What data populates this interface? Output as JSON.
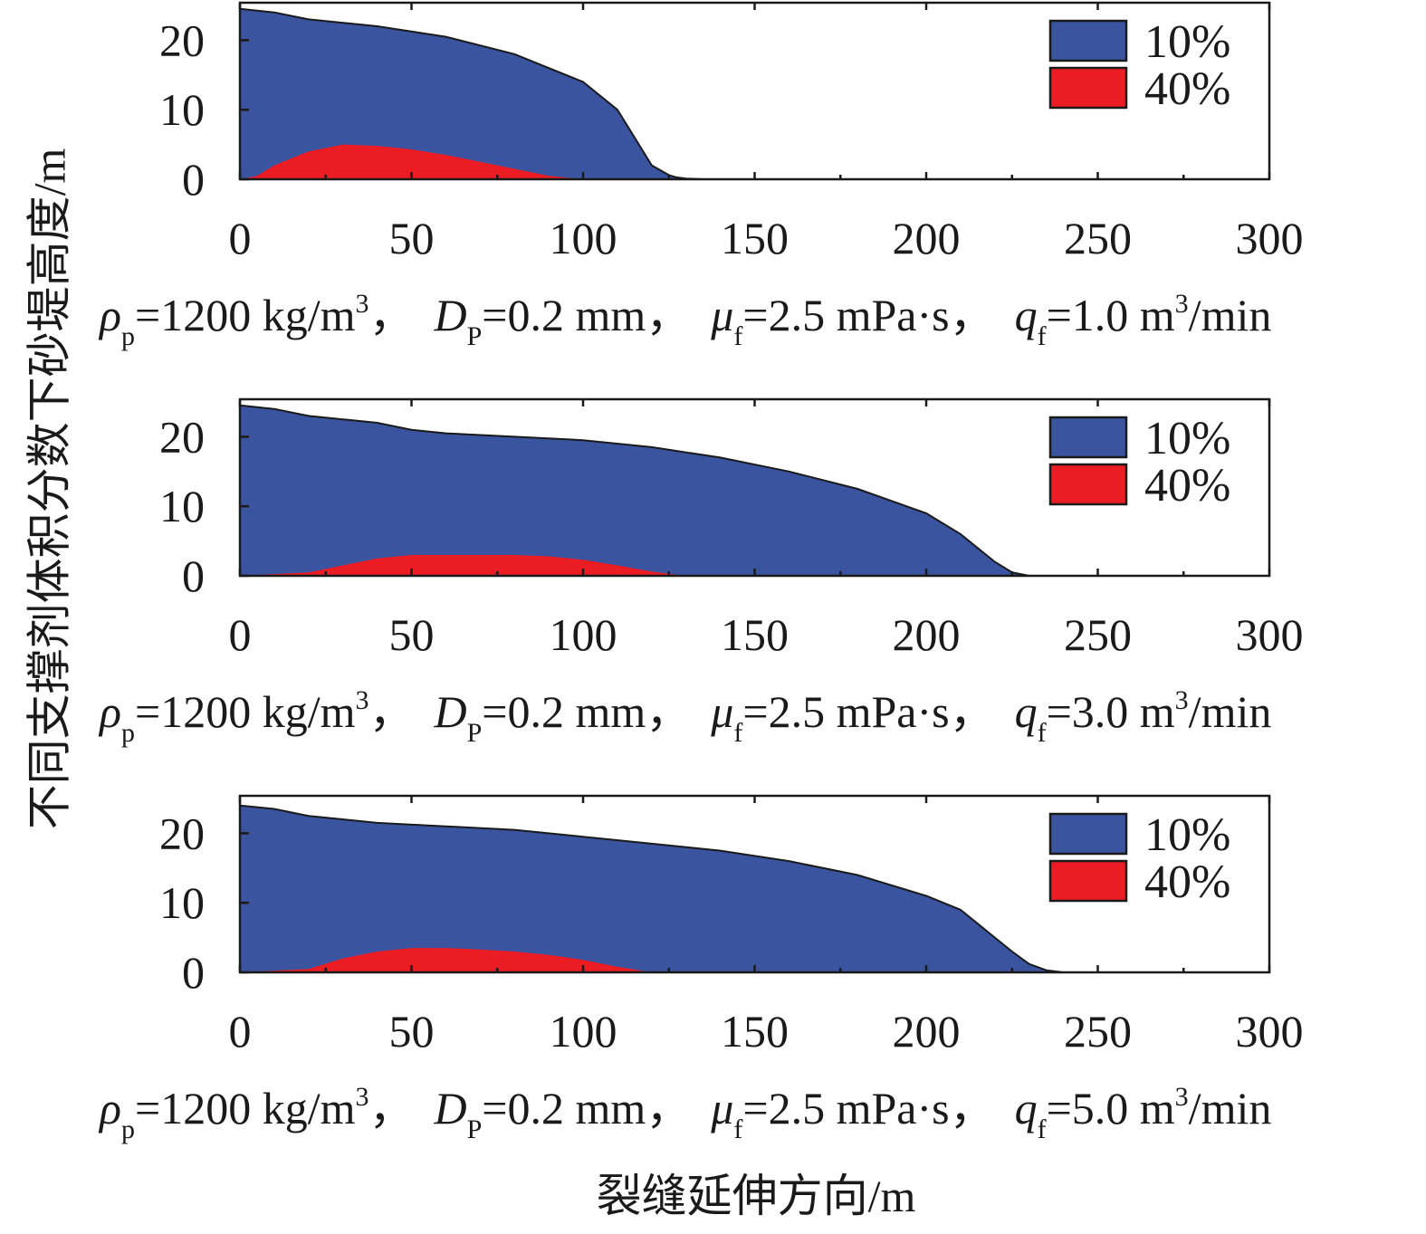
{
  "figure": {
    "ylabel": "不同支撑剂体积分数下砂堤高度/m",
    "xlabel": "裂缝延伸方向/m"
  },
  "colors": {
    "series_10": "#3a54a0",
    "series_40": "#ec1c24"
  },
  "chart_data": [
    {
      "type": "area",
      "xlim": [
        0,
        300
      ],
      "ylim": [
        0,
        25
      ],
      "xticks": [
        0,
        50,
        100,
        150,
        200,
        250,
        300
      ],
      "yticks": [
        0,
        10,
        20
      ],
      "legend": {
        "placement": "top-right",
        "entries": [
          "10%",
          "40%"
        ]
      },
      "caption": {
        "rho_sym": "ρ",
        "rho_sub": "p",
        "rho_val": "=1200 kg/m",
        "rho_sup": "3",
        "sep1": "，",
        "d_sym": "D",
        "d_sub": "P",
        "d_val": "=0.2 mm",
        "sep2": "，",
        "mu_sym": "μ",
        "mu_sub": "f",
        "mu_val": "=2.5 mPa·s",
        "sep3": "，",
        "q_sym": "q",
        "q_sub": "f",
        "q_val": "=1.0 m",
        "q_sup": "3",
        "q_unit": "/min"
      },
      "series": [
        {
          "name": "10%",
          "x": [
            0,
            10,
            20,
            40,
            60,
            80,
            100,
            110,
            115,
            120,
            125,
            127,
            130,
            135
          ],
          "y": [
            24.5,
            24,
            23,
            22,
            20.5,
            18,
            14,
            10,
            6,
            2,
            0.6,
            0.3,
            0.1,
            0
          ]
        },
        {
          "name": "40%",
          "x": [
            0,
            5,
            10,
            20,
            30,
            40,
            50,
            60,
            70,
            80,
            90,
            100
          ],
          "y": [
            0,
            0.5,
            2,
            4,
            5,
            4.8,
            4.3,
            3.5,
            2.5,
            1.5,
            0.5,
            0
          ]
        }
      ]
    },
    {
      "type": "area",
      "xlim": [
        0,
        300
      ],
      "ylim": [
        0,
        25
      ],
      "xticks": [
        0,
        50,
        100,
        150,
        200,
        250,
        300
      ],
      "yticks": [
        0,
        10,
        20
      ],
      "legend": {
        "placement": "top-right",
        "entries": [
          "10%",
          "40%"
        ]
      },
      "caption": {
        "rho_sym": "ρ",
        "rho_sub": "p",
        "rho_val": "=1200 kg/m",
        "rho_sup": "3",
        "sep1": "，",
        "d_sym": "D",
        "d_sub": "P",
        "d_val": "=0.2 mm",
        "sep2": "，",
        "mu_sym": "μ",
        "mu_sub": "f",
        "mu_val": "=2.5 mPa·s",
        "sep3": "，",
        "q_sym": "q",
        "q_sub": "f",
        "q_val": "=3.0 m",
        "q_sup": "3",
        "q_unit": "/min"
      },
      "series": [
        {
          "name": "10%",
          "x": [
            0,
            10,
            20,
            30,
            40,
            50,
            60,
            80,
            100,
            120,
            140,
            160,
            180,
            200,
            210,
            215,
            220,
            225,
            230
          ],
          "y": [
            24.5,
            24,
            23,
            22.5,
            22,
            21,
            20.5,
            20,
            19.5,
            18.5,
            17,
            15,
            12.5,
            9,
            6,
            4,
            2,
            0.5,
            0
          ]
        },
        {
          "name": "40%",
          "x": [
            0,
            20,
            30,
            40,
            50,
            60,
            70,
            80,
            90,
            100,
            110,
            120,
            130
          ],
          "y": [
            0,
            0.5,
            1.5,
            2.5,
            3,
            3,
            3,
            3,
            2.8,
            2.3,
            1.5,
            0.6,
            0
          ]
        }
      ]
    },
    {
      "type": "area",
      "xlim": [
        0,
        300
      ],
      "ylim": [
        0,
        25
      ],
      "xticks": [
        0,
        50,
        100,
        150,
        200,
        250,
        300
      ],
      "yticks": [
        0,
        10,
        20
      ],
      "legend": {
        "placement": "top-right",
        "entries": [
          "10%",
          "40%"
        ]
      },
      "caption": {
        "rho_sym": "ρ",
        "rho_sub": "p",
        "rho_val": "=1200 kg/m",
        "rho_sup": "3",
        "sep1": "，",
        "d_sym": "D",
        "d_sub": "P",
        "d_val": "=0.2 mm",
        "sep2": "，",
        "mu_sym": "μ",
        "mu_sub": "f",
        "mu_val": "=2.5 mPa·s",
        "sep3": "，",
        "q_sym": "q",
        "q_sub": "f",
        "q_val": "=5.0 m",
        "q_sup": "3",
        "q_unit": "/min"
      },
      "series": [
        {
          "name": "10%",
          "x": [
            0,
            10,
            20,
            30,
            40,
            60,
            80,
            100,
            120,
            140,
            160,
            180,
            200,
            210,
            215,
            220,
            225,
            230,
            235,
            240
          ],
          "y": [
            24,
            23.5,
            22.5,
            22,
            21.5,
            21,
            20.5,
            19.5,
            18.5,
            17.5,
            16,
            14,
            11,
            9,
            7,
            5,
            3,
            1.2,
            0.3,
            0
          ]
        },
        {
          "name": "40%",
          "x": [
            0,
            20,
            30,
            40,
            50,
            60,
            70,
            80,
            90,
            100,
            110,
            120
          ],
          "y": [
            0,
            0.5,
            2,
            3,
            3.5,
            3.5,
            3.3,
            3,
            2.5,
            1.8,
            0.8,
            0
          ]
        }
      ]
    }
  ]
}
